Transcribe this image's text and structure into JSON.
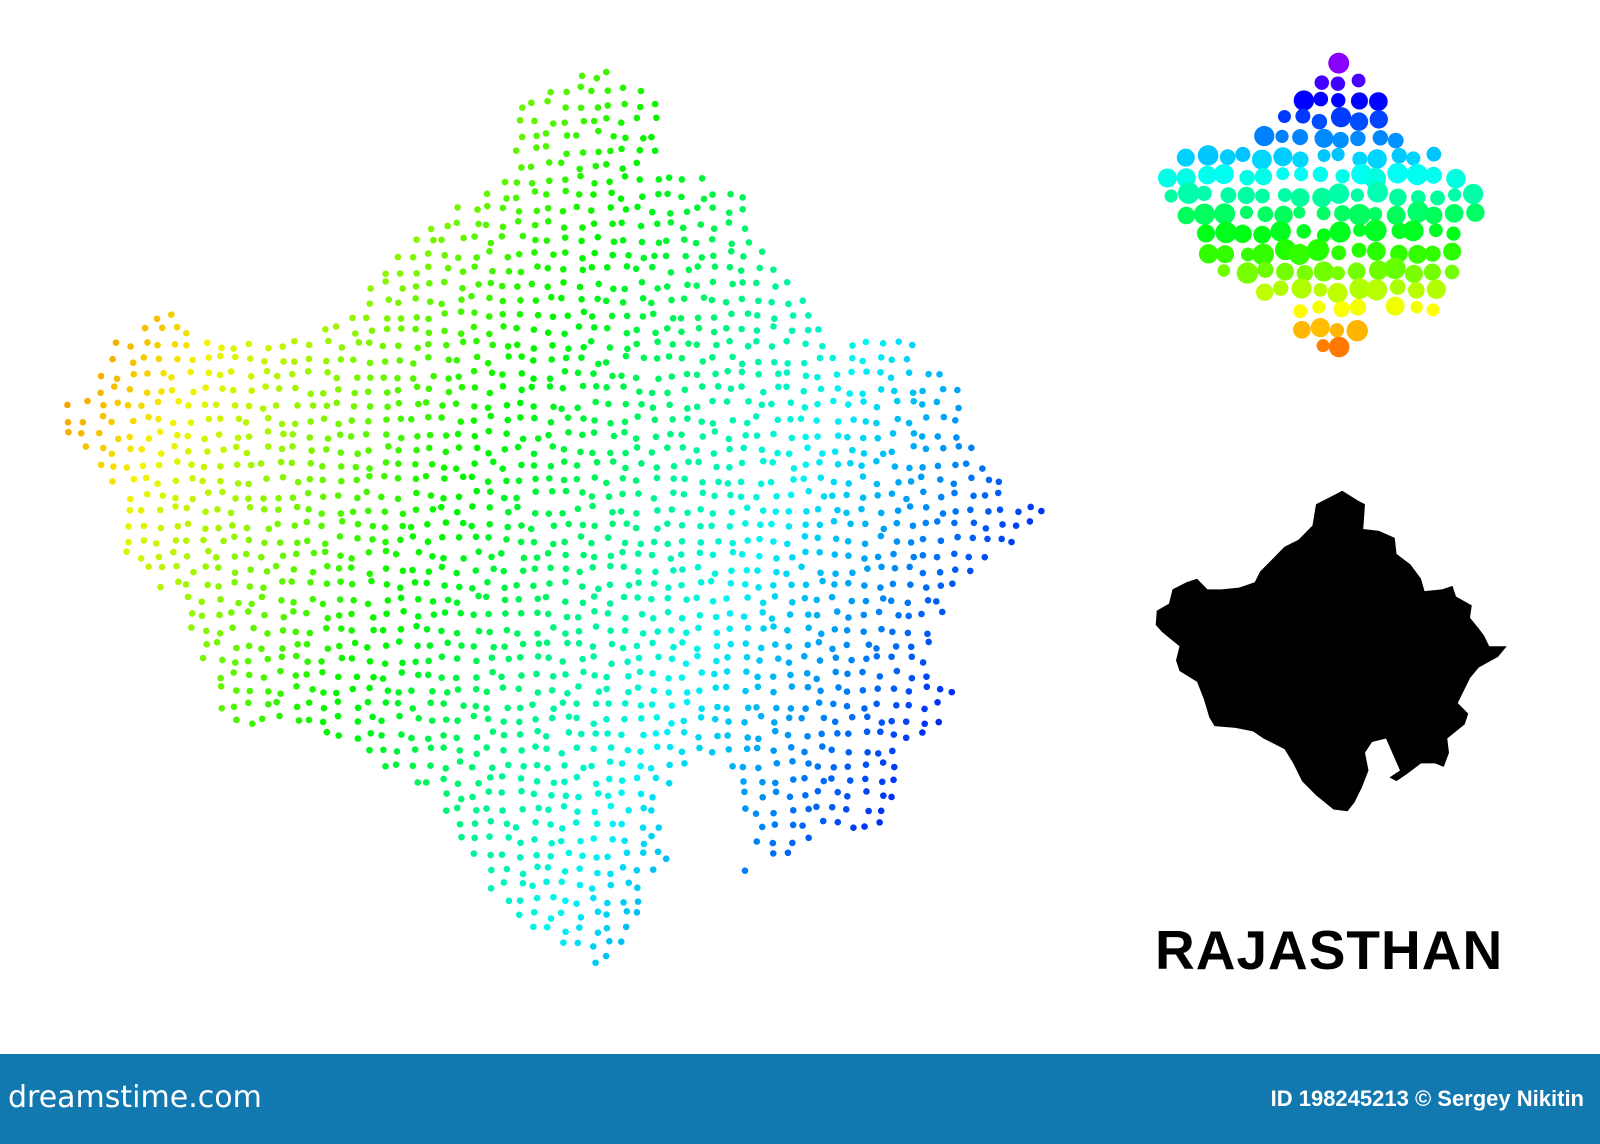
{
  "map": {
    "title": "RAJASTHAN",
    "dotted_map_gradient": [
      "#f0a000",
      "#e0f000",
      "#20e020",
      "#00f0f0",
      "#1040ff"
    ],
    "circle_map_gradient": [
      "#8000ff",
      "#0060ff",
      "#00f0f0",
      "#20e020",
      "#e0e000",
      "#ff2000"
    ],
    "silhouette_color": "#000000"
  },
  "footer": {
    "background": "#1178b0",
    "logo": "dreamstime.com",
    "credit": "ID 198245213 © Sergey Nikitin"
  }
}
